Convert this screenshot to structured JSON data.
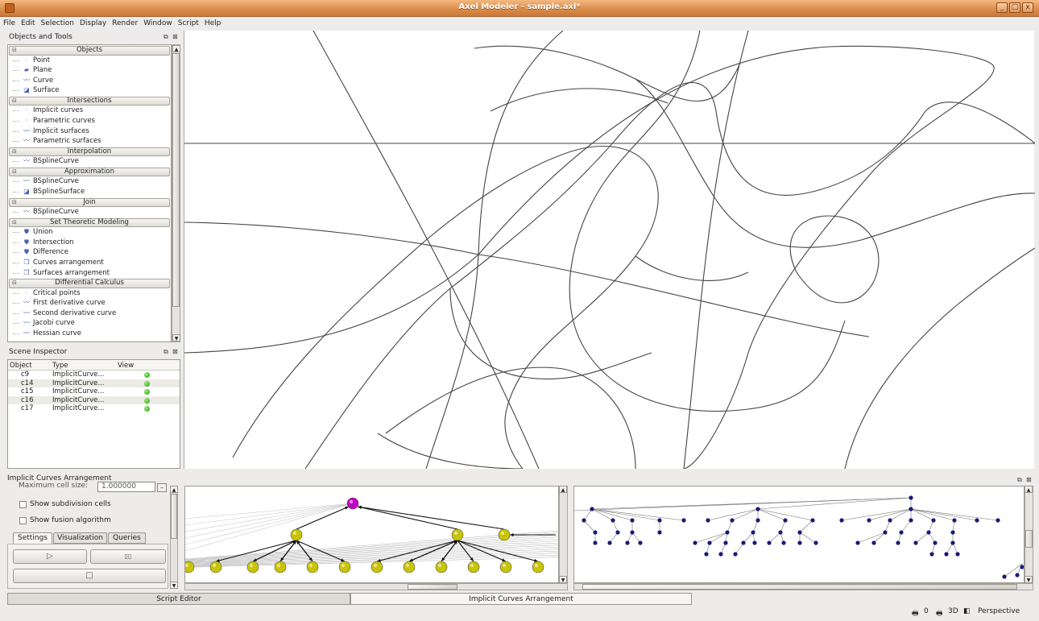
{
  "window": {
    "title": "Axel Modeler - sample.axl*",
    "min": "_",
    "max": "□",
    "close": "x"
  },
  "menu": [
    "File",
    "Edit",
    "Selection",
    "Display",
    "Render",
    "Window",
    "Script",
    "Help"
  ],
  "objects_panel": {
    "title": "Objects and Tools",
    "sections": [
      {
        "title": "Objects",
        "items": [
          {
            "label": "Point",
            "icon": "point-icon"
          },
          {
            "label": "Plane",
            "icon": "plane-icon"
          },
          {
            "label": "Curve",
            "icon": "curve-icon"
          },
          {
            "label": "Surface",
            "icon": "surface-icon"
          }
        ]
      },
      {
        "title": "Intersections",
        "items": [
          {
            "label": "Implicit curves",
            "icon": "point-icon"
          },
          {
            "label": "Parametric curves",
            "icon": "point-icon"
          },
          {
            "label": "Implicit surfaces",
            "icon": "curve-icon"
          },
          {
            "label": "Parametric surfaces",
            "icon": "curve-icon"
          }
        ]
      },
      {
        "title": "Interpolation",
        "items": [
          {
            "label": "BSplineCurve",
            "icon": "curve-icon"
          }
        ]
      },
      {
        "title": "Approximation",
        "items": [
          {
            "label": "BSplineCurve",
            "icon": "curve-icon"
          },
          {
            "label": "BSplineSurface",
            "icon": "surface-icon"
          }
        ]
      },
      {
        "title": "Join",
        "items": [
          {
            "label": "BSplineCurve",
            "icon": "curve-icon"
          }
        ]
      },
      {
        "title": "Set Theoretic Modeling",
        "items": [
          {
            "label": "Union",
            "icon": "shield-icon"
          },
          {
            "label": "Intersection",
            "icon": "shield-icon"
          },
          {
            "label": "Difference",
            "icon": "shield-icon"
          },
          {
            "label": "Curves arrangement",
            "icon": "cube-icon"
          },
          {
            "label": "Surfaces arrangement",
            "icon": "cube-icon"
          }
        ]
      },
      {
        "title": "Differential Calculus",
        "items": [
          {
            "label": "Critical points",
            "icon": "point-icon"
          },
          {
            "label": "First derivative curve",
            "icon": "curve-icon"
          },
          {
            "label": "Second derivative curve",
            "icon": "curve-icon"
          },
          {
            "label": "Jacobi curve",
            "icon": "curve-icon"
          },
          {
            "label": "Hessian curve",
            "icon": "curve-icon"
          }
        ]
      }
    ]
  },
  "scene_inspector": {
    "title": "Scene Inspector",
    "columns": [
      "Object",
      "Type",
      "View"
    ],
    "rows": [
      {
        "object": "c9",
        "type": "ImplicitCurve..."
      },
      {
        "object": "c14",
        "type": "ImplicitCurve..."
      },
      {
        "object": "c15",
        "type": "ImplicitCurve..."
      },
      {
        "object": "c16",
        "type": "ImplicitCurve..."
      },
      {
        "object": "c17",
        "type": "ImplicitCurve..."
      }
    ]
  },
  "arrangement_panel": {
    "title": "Implicit Curves Arrangement",
    "max_cell_label": "Maximum cell size:",
    "max_cell_value": "1.000000",
    "show_subdivision": "Show subdivision cells",
    "show_fusion": "Show fusion algorithm",
    "tabs": [
      "Settings",
      "Visualization",
      "Queries"
    ],
    "play": "▷",
    "pause": "▯▯",
    "stop": "□"
  },
  "bottom_tabs": [
    "Script Editor",
    "Implicit Curves Arrangement"
  ],
  "status": {
    "count": "0",
    "mode": "3D",
    "projection": "Perspective"
  },
  "colors": {
    "titlebar": "#d98b4a",
    "node_yellow": "#c8c400",
    "node_magenta": "#c400c4",
    "node_blue": "#1a1a7a",
    "visible_green": "#2fae23"
  }
}
